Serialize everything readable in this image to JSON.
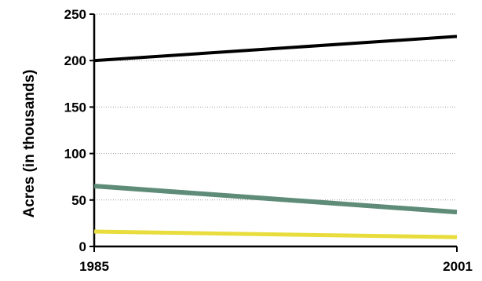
{
  "chart_data": {
    "type": "line",
    "title": "",
    "xlabel": "",
    "ylabel": "Acres (in thousands)",
    "x": [
      1985,
      2001
    ],
    "x_tick_labels": [
      "1985",
      "2001"
    ],
    "xlim": [
      1985,
      2001
    ],
    "ylim": [
      0,
      250
    ],
    "y_ticks": [
      0,
      50,
      100,
      150,
      200,
      250
    ],
    "y_tick_labels": [
      "0",
      "50",
      "100",
      "150",
      "200",
      "250"
    ],
    "grid": "horizontal dotted",
    "legend": "none",
    "series": [
      {
        "color": "#000000",
        "values": [
          200,
          226
        ]
      },
      {
        "color": "#5e8c78",
        "values": [
          65,
          37
        ]
      },
      {
        "color": "#e8dd3c",
        "values": [
          16,
          10
        ]
      }
    ]
  }
}
